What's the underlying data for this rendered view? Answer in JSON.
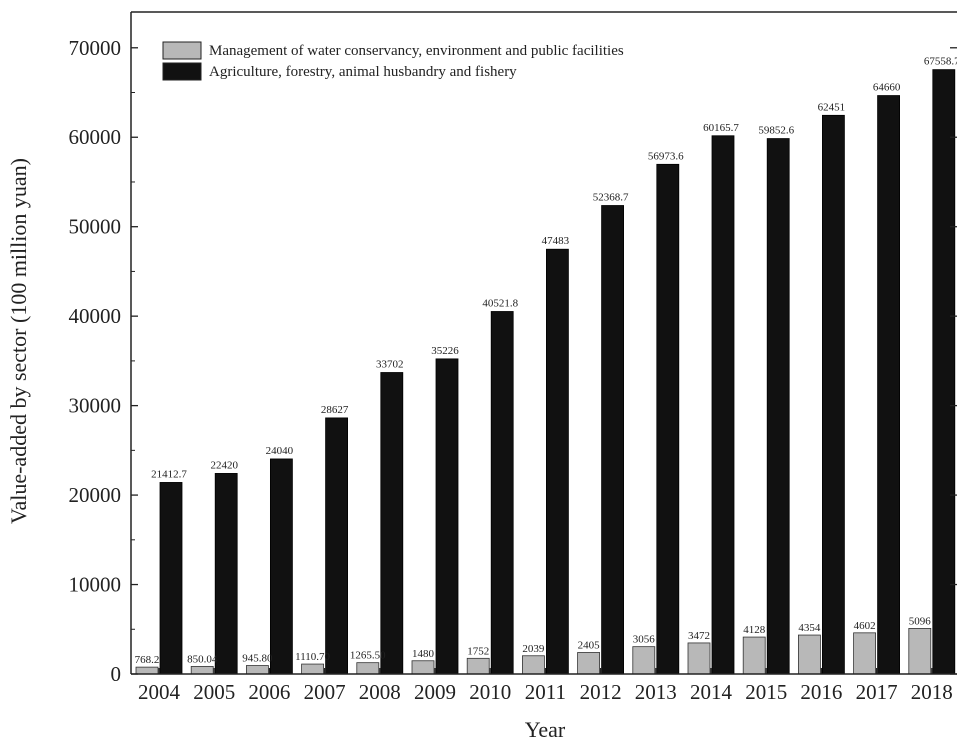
{
  "chart_data": {
    "type": "bar",
    "title": "",
    "xlabel": "Year",
    "ylabel": "Value-added by sector (100 million yuan)",
    "ylim": [
      0,
      74000
    ],
    "yticks": [
      "0",
      "10000",
      "20000",
      "30000",
      "40000",
      "50000",
      "60000",
      "70000"
    ],
    "ytick_values": [
      0,
      10000,
      20000,
      30000,
      40000,
      50000,
      60000,
      70000
    ],
    "categories": [
      "2004",
      "2005",
      "2006",
      "2007",
      "2008",
      "2009",
      "2010",
      "2011",
      "2012",
      "2013",
      "2014",
      "2015",
      "2016",
      "2017",
      "2018"
    ],
    "legend_position": "top-left",
    "grid": false,
    "series": [
      {
        "name": "Management of water conservancy, environment and public facilities",
        "color": "#b8b8b8",
        "values": [
          768.2,
          850.04,
          945.8,
          1110.7,
          1265.5,
          1480,
          1752,
          2039,
          2405,
          3056,
          3472,
          4128,
          4354,
          4602,
          5096
        ],
        "labels": [
          "768.2",
          "850.04",
          "945.80",
          "1110.70",
          "1265.50",
          "1480",
          "1752",
          "2039",
          "2405",
          "3056",
          "3472",
          "4128",
          "4354",
          "4602",
          "5096"
        ]
      },
      {
        "name": "Agriculture, forestry, animal husbandry and fishery",
        "color": "#111111",
        "values": [
          21412.7,
          22420,
          24040,
          28627,
          33702,
          35226,
          40521.8,
          47483,
          52368.7,
          56973.6,
          60165.7,
          59852.6,
          62451,
          64660,
          67558.7
        ],
        "labels": [
          "21412.7",
          "22420",
          "24040",
          "28627",
          "33702",
          "35226",
          "40521.8",
          "47483",
          "52368.7",
          "56973.6",
          "60165.7",
          "59852.6",
          "62451",
          "64660",
          "67558.7"
        ]
      }
    ]
  }
}
